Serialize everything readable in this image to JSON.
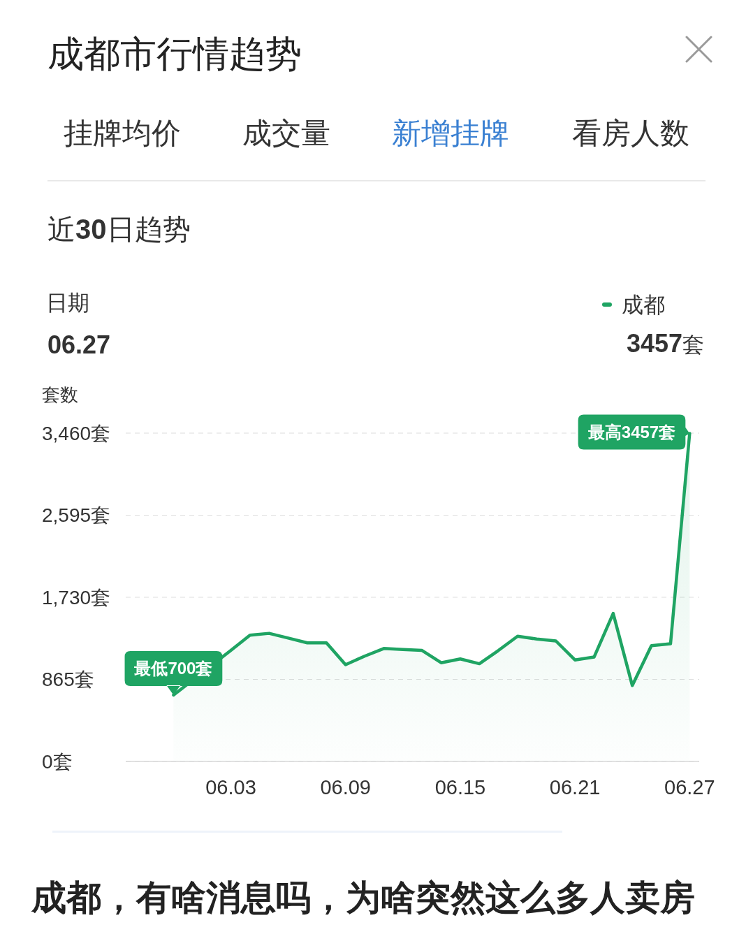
{
  "chart_data": {
    "type": "area",
    "title": "成都市行情趋势",
    "subtitle": "近30日趋势",
    "ylabel": "套数",
    "categories": [
      null,
      null,
      null,
      null,
      null,
      "06.03",
      null,
      null,
      null,
      null,
      null,
      "06.09",
      null,
      null,
      null,
      null,
      null,
      "06.15",
      null,
      null,
      null,
      null,
      null,
      "06.21",
      null,
      null,
      null,
      null,
      null,
      "06.27"
    ],
    "series": [
      {
        "name": "成都",
        "color": "#1fa463",
        "values": [
          null,
          null,
          700,
          null,
          null,
          1170,
          1330,
          1350,
          1300,
          1250,
          1250,
          1020,
          1110,
          1190,
          1180,
          1170,
          1040,
          1080,
          1030,
          1170,
          1320,
          1290,
          1270,
          1070,
          1100,
          1560,
          800,
          1220,
          1240,
          3457
        ]
      }
    ],
    "ylim": [
      0,
      3460
    ],
    "yticks": [
      {
        "value": 0,
        "label": "0套"
      },
      {
        "value": 865,
        "label": "865套"
      },
      {
        "value": 1730,
        "label": "1,730套"
      },
      {
        "value": 2595,
        "label": "2,595套"
      },
      {
        "value": 3460,
        "label": "3,460套"
      }
    ],
    "grid": "y",
    "legend": "top right",
    "annotations": [
      "挂牌均价",
      "成交量",
      "新增挂牌",
      "看房人数",
      "日期",
      "06.27",
      "3457套",
      {
        "text": "最低700套",
        "y": 700
      },
      {
        "text": "最高3457套",
        "x": "06.27",
        "y": 3457
      },
      "成都，有啥消息吗，为啥突然这么多人卖房"
    ]
  }
}
